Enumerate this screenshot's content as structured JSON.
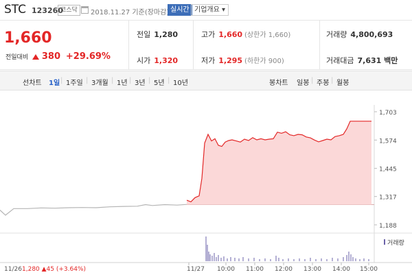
{
  "header": {
    "name": "STC",
    "code": "123260",
    "market": "코스닥",
    "date": "2018.11.27 기준(장마감)",
    "realtime_label": "실시간",
    "info_label": "기업개요 ▾"
  },
  "quote": {
    "price": "1,660",
    "change_label": "전일대비",
    "change": "380",
    "change_pct": "+29.69%",
    "prev_close_label": "전일",
    "prev_close": "1,280",
    "open_label": "시가",
    "open": "1,320",
    "high_label": "고가",
    "high": "1,660",
    "upper_limit": "(상한가 1,660)",
    "low_label": "저가",
    "low": "1,295",
    "lower_limit": "(하한가 900)",
    "volume_label": "거래량",
    "volume": "4,800,693",
    "amount_label": "거래대금",
    "amount": "7,631 백만"
  },
  "periods": {
    "line_label": "선차트",
    "items": [
      "1일",
      "1주일",
      "3개월",
      "1년",
      "3년",
      "5년",
      "10년"
    ],
    "selected": "1일",
    "candle_label": "봉차트",
    "candle_items": [
      "일봉",
      "주봉",
      "월봉"
    ]
  },
  "chart_data": {
    "type": "line",
    "y_ticks": [
      "1,703",
      "1,574",
      "1,445",
      "1,317",
      "1,188"
    ],
    "ylim": [
      1188,
      1703
    ],
    "x_ticks": [
      "11/27",
      "10:00",
      "11:00",
      "12:00",
      "13:00",
      "14:00",
      "15:00"
    ],
    "prev_day_label": "11/26",
    "prev_day_info": "1,280 ▲45 (+3.64%)",
    "volume_label": "거래량",
    "baseline": 1280,
    "colors": {
      "today": "#e32727",
      "prev": "#b5b5b5",
      "area": "#fbd8d8",
      "volume": "#6a61a8"
    }
  }
}
